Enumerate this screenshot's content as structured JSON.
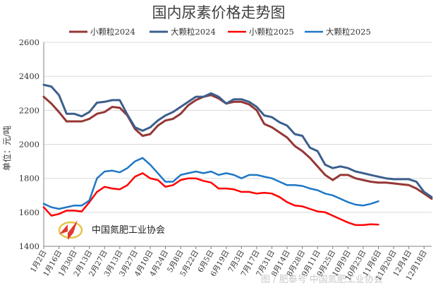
{
  "chart_data": {
    "type": "line",
    "title": "国内尿素价格走势图",
    "ylabel": "单位：元/吨",
    "xlabel": "",
    "ylim": [
      1400,
      2600
    ],
    "yticks": [
      1400,
      1600,
      1800,
      2000,
      2200,
      2400,
      2600
    ],
    "x_tick_labels": [
      "1月2日",
      "1月16日",
      "1月30日",
      "2月13日",
      "2月27日",
      "3月13日",
      "3月27日",
      "4月10日",
      "4月24日",
      "5月8日",
      "5月22日",
      "6月5日",
      "6月19日",
      "7月3日",
      "7月17日",
      "7月31日",
      "8月14日",
      "8月28日",
      "9月11日",
      "9月25日",
      "10月9日",
      "10月23日",
      "11月6日",
      "11月20日",
      "12月4日",
      "12月18日"
    ],
    "x_count": 52,
    "legend_position": "top",
    "series": [
      {
        "name": "小颗粒2024",
        "color": "#953735",
        "width": 3,
        "values": [
          2280,
          2240,
          2190,
          2135,
          2135,
          2135,
          2150,
          2180,
          2190,
          2220,
          2215,
          2170,
          2090,
          2050,
          2060,
          2110,
          2140,
          2150,
          2180,
          2230,
          2260,
          2280,
          2290,
          2270,
          2240,
          2250,
          2250,
          2235,
          2200,
          2120,
          2100,
          2070,
          2040,
          1990,
          1960,
          1920,
          1870,
          1820,
          1790,
          1820,
          1820,
          1800,
          1790,
          1780,
          1775,
          1775,
          1770,
          1765,
          1760,
          1740,
          1710,
          1680
        ]
      },
      {
        "name": "大颗粒2024",
        "color": "#3c5f8c",
        "width": 3,
        "values": [
          2350,
          2340,
          2290,
          2180,
          2180,
          2165,
          2190,
          2245,
          2250,
          2260,
          2260,
          2175,
          2100,
          2080,
          2100,
          2140,
          2170,
          2190,
          2220,
          2250,
          2280,
          2280,
          2300,
          2280,
          2240,
          2265,
          2265,
          2250,
          2220,
          2170,
          2160,
          2130,
          2110,
          2060,
          2050,
          1980,
          1960,
          1880,
          1860,
          1870,
          1860,
          1840,
          1830,
          1820,
          1810,
          1800,
          1795,
          1795,
          1795,
          1780,
          1720,
          1690
        ]
      },
      {
        "name": "小颗粒2025",
        "color": "#ff0000",
        "width": 2.5,
        "values": [
          1630,
          1580,
          1590,
          1610,
          1610,
          1605,
          1660,
          1720,
          1750,
          1740,
          1735,
          1760,
          1810,
          1830,
          1800,
          1790,
          1750,
          1760,
          1790,
          1800,
          1800,
          1785,
          1775,
          1740,
          1740,
          1735,
          1720,
          1720,
          1710,
          1715,
          1710,
          1690,
          1660,
          1640,
          1635,
          1620,
          1605,
          1600,
          1580,
          1560,
          1540,
          1525,
          1525,
          1530,
          1528
        ]
      },
      {
        "name": "大颗粒2025",
        "color": "#1f77c6",
        "width": 2.5,
        "values": [
          1650,
          1630,
          1620,
          1630,
          1640,
          1640,
          1670,
          1800,
          1840,
          1845,
          1835,
          1860,
          1900,
          1920,
          1880,
          1830,
          1780,
          1780,
          1820,
          1830,
          1840,
          1830,
          1840,
          1820,
          1830,
          1820,
          1800,
          1820,
          1820,
          1810,
          1800,
          1780,
          1760,
          1760,
          1755,
          1740,
          1730,
          1710,
          1700,
          1680,
          1660,
          1645,
          1640,
          1650,
          1665
        ]
      }
    ]
  },
  "watermark": {
    "text": "中国氮肥工业协会",
    "logo_alt": "中国氮肥工业协会"
  },
  "source_overlay": {
    "text": "图 / 肥泰号 中国氮肥工业协会"
  }
}
